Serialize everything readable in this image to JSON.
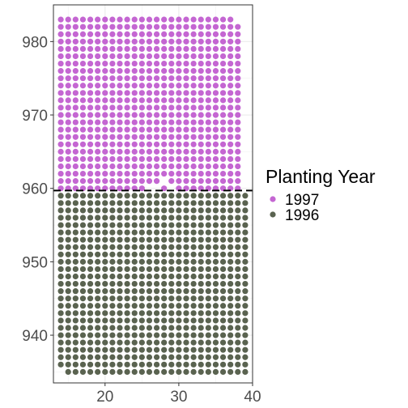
{
  "chart_data": {
    "type": "scatter",
    "title": "",
    "xlabel": "",
    "ylabel": "",
    "xlim": [
      13,
      40
    ],
    "ylim": [
      933.5,
      985
    ],
    "x_ticks": [
      20,
      30,
      40
    ],
    "y_ticks": [
      940,
      950,
      960,
      970,
      980
    ],
    "grid": true,
    "reference_line": {
      "axis": "y",
      "value": 959.7,
      "style": "dashed",
      "color": "#000000"
    },
    "legend": {
      "title": "Planting Year",
      "position": "right"
    },
    "series": [
      {
        "name": "1997",
        "color": "#c466d2",
        "grid_points": {
          "x_start": 14,
          "x_end": 38,
          "x_step": 1,
          "y_start": 960,
          "y_end": 983,
          "y_step": 1,
          "x_max_at_top_row": 37,
          "missing": [
            [
              26,
              960
            ],
            [
              27,
              960
            ],
            [
              29,
              960
            ],
            [
              28,
              961
            ]
          ]
        }
      },
      {
        "name": "1996",
        "color": "#5a6350",
        "grid_points": {
          "x_start": 14,
          "x_end": 39,
          "x_step": 1,
          "y_start": 935,
          "y_end": 959,
          "y_step": 1,
          "x_min_at_bottom_row": 15
        }
      }
    ],
    "legend_order": [
      "1997",
      "1996"
    ]
  }
}
